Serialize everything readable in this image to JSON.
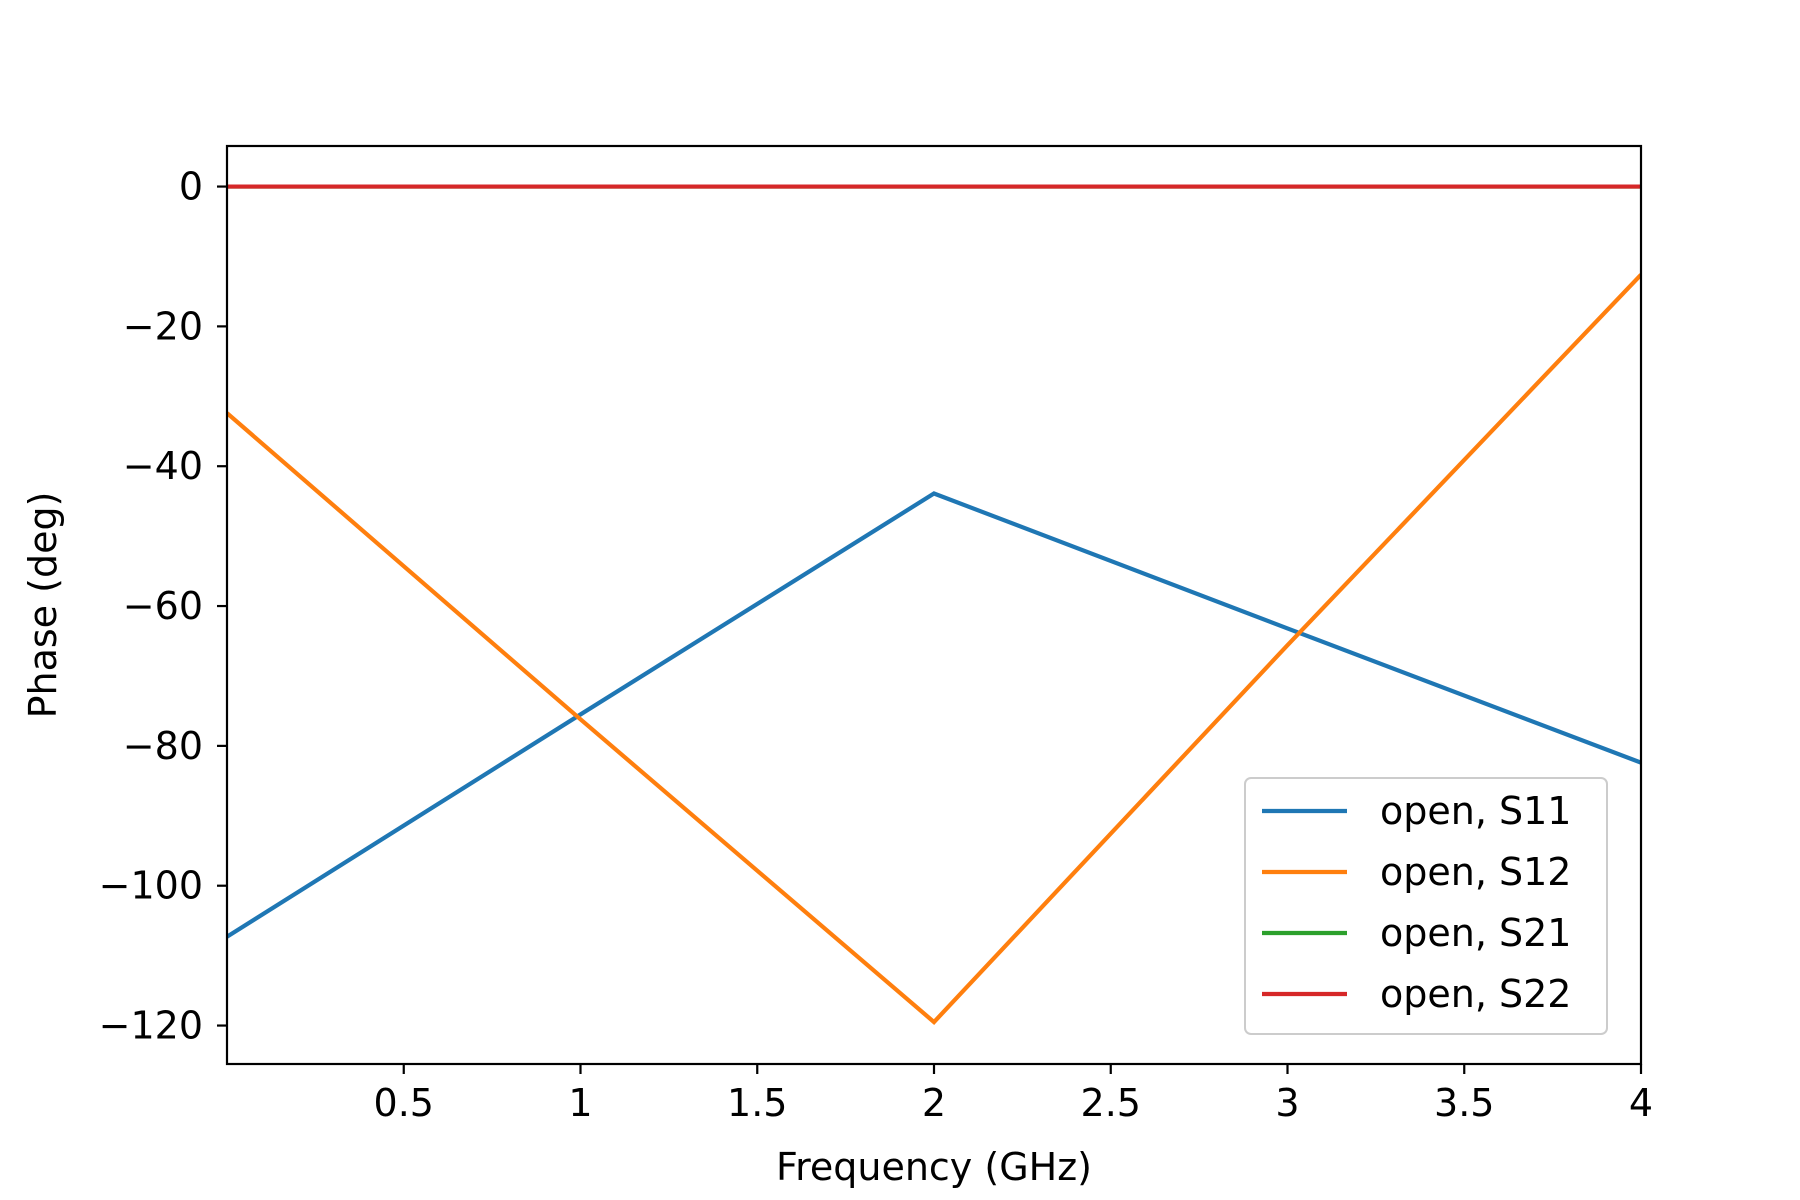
{
  "chart_data": {
    "type": "line",
    "title": "",
    "xlabel": "Frequency (GHz)",
    "ylabel": "Phase (deg)",
    "xlim": [
      0,
      4
    ],
    "ylim": [
      -125.5,
      5.8
    ],
    "xticks": [
      0.5,
      1,
      1.5,
      2,
      2.5,
      3,
      3.5,
      4
    ],
    "xtick_labels": [
      "0.5",
      "1",
      "1.5",
      "2",
      "2.5",
      "3",
      "3.5",
      "4"
    ],
    "yticks": [
      0,
      -20,
      -40,
      -60,
      -80,
      -100,
      -120
    ],
    "ytick_labels": [
      "0",
      "−20",
      "−40",
      "−60",
      "−80",
      "−100",
      "−120"
    ],
    "grid": false,
    "legend_position": "lower-right",
    "x": [
      0,
      1,
      2,
      3,
      4
    ],
    "series": [
      {
        "name": "open, S11",
        "color": "#1f77b4",
        "values": [
          -107.3,
          -75.5,
          -43.9,
          -63.2,
          -82.4
        ]
      },
      {
        "name": "open, S12",
        "color": "#ff7f0e",
        "values": [
          -32.4,
          -76.2,
          -119.5,
          -65.6,
          -12.6
        ]
      },
      {
        "name": "open, S21",
        "color": "#2ca02c",
        "values": [
          0,
          0,
          0,
          0,
          0
        ]
      },
      {
        "name": "open, S22",
        "color": "#d62728",
        "values": [
          0,
          0,
          0,
          0,
          0
        ]
      }
    ]
  }
}
